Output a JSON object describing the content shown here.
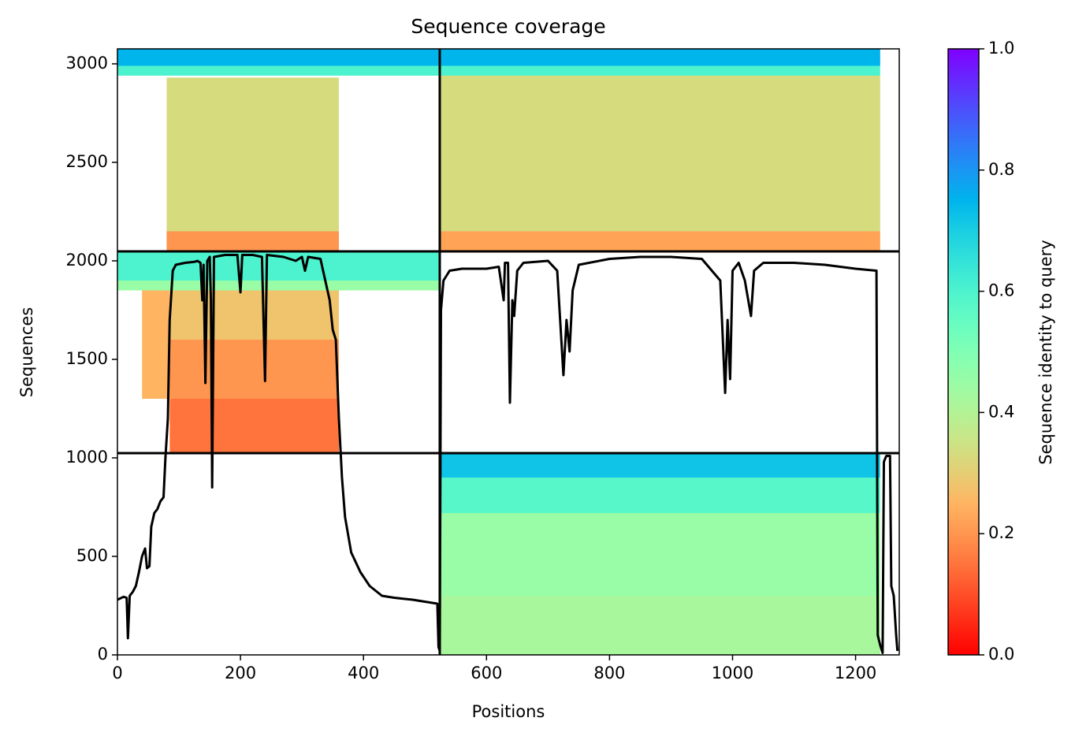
{
  "chart_data": {
    "type": "coverage",
    "title": "Sequence coverage",
    "xlabel": "Positions",
    "ylabel": "Sequences",
    "xlim": [
      0,
      1271
    ],
    "ylim": [
      0,
      3076
    ],
    "xticks": [
      0,
      200,
      400,
      600,
      800,
      1000,
      1200
    ],
    "yticks": [
      0,
      500,
      1000,
      1500,
      2000,
      2500,
      3000
    ],
    "line_color": "#000000",
    "colormap": "rainbow_r",
    "colorbar": {
      "label": "Sequence identity to query",
      "lim": [
        0,
        1
      ],
      "ticks": [
        {
          "value": 0,
          "label": "0.0"
        },
        {
          "value": 0.2,
          "label": "0.2"
        },
        {
          "value": 0.4,
          "label": "0.4"
        },
        {
          "value": 0.6,
          "label": "0.6"
        },
        {
          "value": 0.8,
          "label": "0.8"
        },
        {
          "value": 1,
          "label": "1.0"
        }
      ]
    },
    "dividers": {
      "x": [
        524
      ],
      "y": [
        1024,
        2048
      ]
    },
    "heatmap": [
      {
        "x": [
          0,
          524
        ],
        "y": [
          2990,
          3076
        ],
        "identity": 0.75
      },
      {
        "x": [
          0,
          524
        ],
        "y": [
          2940,
          2990
        ],
        "identity": 0.6
      },
      {
        "x": [
          80,
          360
        ],
        "y": [
          2150,
          2930
        ],
        "identity": 0.33
      },
      {
        "x": [
          80,
          360
        ],
        "y": [
          2048,
          2150
        ],
        "identity": 0.2
      },
      {
        "x": [
          524,
          1240
        ],
        "y": [
          2990,
          3076
        ],
        "identity": 0.75
      },
      {
        "x": [
          524,
          1240
        ],
        "y": [
          2940,
          2990
        ],
        "identity": 0.6
      },
      {
        "x": [
          524,
          1240
        ],
        "y": [
          2150,
          2940
        ],
        "identity": 0.33
      },
      {
        "x": [
          524,
          1240
        ],
        "y": [
          2048,
          2150
        ],
        "identity": 0.22
      },
      {
        "x": [
          0,
          524
        ],
        "y": [
          1900,
          2048
        ],
        "identity": 0.6
      },
      {
        "x": [
          0,
          524
        ],
        "y": [
          1850,
          1900
        ],
        "identity": 0.45
      },
      {
        "x": [
          40,
          85
        ],
        "y": [
          1300,
          1850
        ],
        "identity": 0.25
      },
      {
        "x": [
          85,
          360
        ],
        "y": [
          1600,
          1850
        ],
        "identity": 0.28
      },
      {
        "x": [
          85,
          360
        ],
        "y": [
          1300,
          1600
        ],
        "identity": 0.2
      },
      {
        "x": [
          85,
          360
        ],
        "y": [
          1024,
          1300
        ],
        "identity": 0.15
      },
      {
        "x": [
          524,
          1240
        ],
        "y": [
          900,
          1024
        ],
        "identity": 0.72
      },
      {
        "x": [
          524,
          1240
        ],
        "y": [
          720,
          900
        ],
        "identity": 0.58
      },
      {
        "x": [
          524,
          1240
        ],
        "y": [
          300,
          720
        ],
        "identity": 0.45
      },
      {
        "x": [
          524,
          1240
        ],
        "y": [
          0,
          300
        ],
        "identity": 0.42
      }
    ],
    "coverage": {
      "x": [
        0,
        10,
        15,
        17,
        20,
        25,
        30,
        35,
        40,
        45,
        48,
        52,
        55,
        60,
        65,
        70,
        75,
        78,
        82,
        85,
        90,
        95,
        110,
        125,
        130,
        135,
        138,
        140,
        143,
        146,
        150,
        152,
        154,
        157,
        175,
        195,
        200,
        203,
        220,
        235,
        240,
        243,
        270,
        290,
        300,
        305,
        310,
        330,
        345,
        350,
        355,
        360,
        365,
        370,
        380,
        395,
        410,
        430,
        450,
        480,
        500,
        520,
        522,
        524,
        526,
        530,
        540,
        560,
        600,
        620,
        628,
        630,
        635,
        638,
        642,
        645,
        650,
        660,
        700,
        715,
        725,
        730,
        735,
        740,
        750,
        800,
        850,
        900,
        950,
        980,
        988,
        992,
        996,
        1000,
        1010,
        1020,
        1030,
        1035,
        1050,
        1100,
        1150,
        1200,
        1234,
        1236,
        1240,
        1244,
        1246,
        1250,
        1256,
        1258,
        1262,
        1266,
        1268
      ],
      "values": [
        280,
        295,
        290,
        85,
        300,
        320,
        350,
        420,
        500,
        540,
        440,
        450,
        650,
        720,
        740,
        780,
        800,
        1000,
        1200,
        1700,
        1950,
        1980,
        1990,
        1995,
        2000,
        1990,
        1800,
        1980,
        1380,
        2000,
        2020,
        1800,
        850,
        2020,
        2030,
        2030,
        1840,
        2030,
        2030,
        2020,
        1390,
        2030,
        2020,
        2000,
        2020,
        1950,
        2020,
        2010,
        1800,
        1650,
        1600,
        1200,
        900,
        700,
        520,
        420,
        350,
        300,
        290,
        280,
        270,
        260,
        40,
        20,
        1750,
        1900,
        1950,
        1960,
        1960,
        1970,
        1800,
        1990,
        1990,
        1280,
        1800,
        1720,
        1950,
        1990,
        2000,
        1950,
        1420,
        1700,
        1540,
        1850,
        1980,
        2010,
        2020,
        2020,
        2010,
        1900,
        1330,
        1700,
        1400,
        1950,
        1990,
        1900,
        1720,
        1950,
        1990,
        1990,
        1980,
        1960,
        1950,
        100,
        50,
        10,
        980,
        1010,
        1010,
        350,
        300,
        100,
        20
      ]
    }
  }
}
